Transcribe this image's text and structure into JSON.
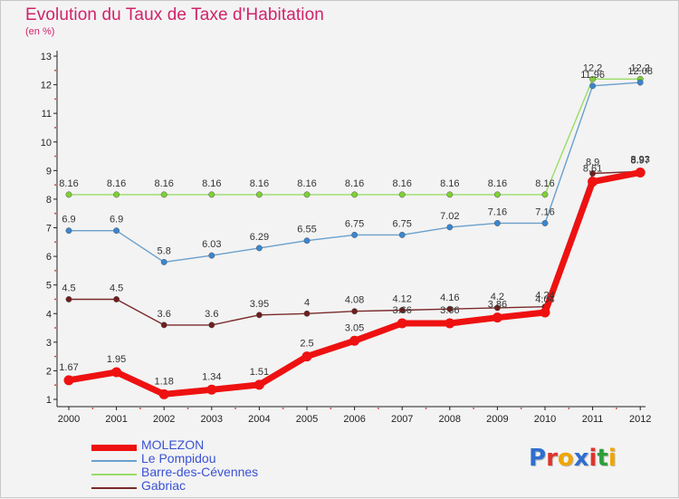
{
  "title": "Evolution du Taux de Taxe d'Habitation",
  "subtitle": "(en %)",
  "brand": {
    "text": "Proxiti",
    "letter_colors": [
      "#2f6fcf",
      "#e0342a",
      "#f0a500",
      "#2f6fcf",
      "#e0342a",
      "#2e9e3a",
      "#f0a500"
    ]
  },
  "chart_data": {
    "type": "line",
    "x": [
      "2000",
      "2001",
      "2002",
      "2003",
      "2004",
      "2005",
      "2006",
      "2007",
      "2008",
      "2009",
      "2010",
      "2011",
      "2012"
    ],
    "ylim": [
      1,
      13
    ],
    "yticks": [
      "1",
      "2",
      "3",
      "4",
      "5",
      "6",
      "7",
      "8",
      "9",
      "10",
      "11",
      "12",
      "13"
    ],
    "grid": false,
    "legend_position": "bottom-left",
    "series": [
      {
        "name": "MOLEZON",
        "color": "#ee1111",
        "marker_color": "#ee1111",
        "values": [
          1.67,
          1.95,
          1.18,
          1.34,
          1.51,
          2.5,
          3.05,
          3.66,
          3.66,
          3.86,
          4.04,
          8.61,
          8.93
        ],
        "labels": [
          "1.67",
          "1.95",
          "1.18",
          "1.34",
          "1.51",
          "2.5",
          "3.05",
          "3.66",
          "3.66",
          "3.86",
          "4.04",
          "8.61",
          "8.93"
        ]
      },
      {
        "name": "Le Pompidou",
        "color": "#6aa0cc",
        "marker_color": "#3a86d0",
        "values": [
          6.9,
          6.9,
          5.8,
          6.03,
          6.29,
          6.55,
          6.75,
          6.75,
          7.02,
          7.16,
          7.16,
          11.96,
          12.08
        ],
        "labels": [
          "6.9",
          "6.9",
          "5.8",
          "6.03",
          "6.29",
          "6.55",
          "6.75",
          "6.75",
          "7.02",
          "7.16",
          "7.16",
          "11.96",
          "12.08"
        ]
      },
      {
        "name": "Barre-des-Cévennes",
        "color": "#99dd66",
        "marker_color": "#7fd035",
        "values": [
          8.16,
          8.16,
          8.16,
          8.16,
          8.16,
          8.16,
          8.16,
          8.16,
          8.16,
          8.16,
          8.16,
          12.2,
          12.2
        ],
        "labels": [
          "8.16",
          "8.16",
          "8.16",
          "8.16",
          "8.16",
          "8.16",
          "8.16",
          "8.16",
          "8.16",
          "8.16",
          "8.16",
          "12.2",
          "12.2"
        ]
      },
      {
        "name": "Gabriac",
        "color": "#7a2a2a",
        "marker_color": "#6e1e1e",
        "values": [
          4.5,
          4.5,
          3.6,
          3.6,
          3.95,
          4.0,
          4.08,
          4.12,
          4.16,
          4.2,
          4.24,
          8.9,
          8.97
        ],
        "labels": [
          "4.5",
          "4.5",
          "3.6",
          "3.6",
          "3.95",
          "4",
          "4.08",
          "4.12",
          "4.16",
          "4.2",
          "4.24",
          "8.9",
          "8.97"
        ]
      }
    ]
  }
}
